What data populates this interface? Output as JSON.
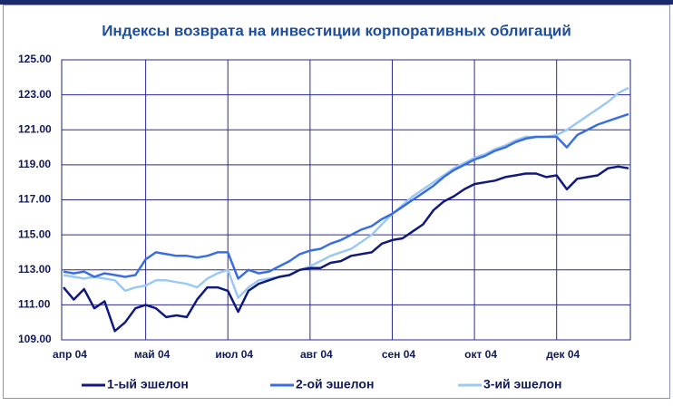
{
  "chart_data": {
    "type": "line",
    "title": "Индексы возврата на инвестиции корпоративных облигаций",
    "categories": [
      "апр 04",
      null,
      null,
      null,
      null,
      null,
      null,
      null,
      "май 04",
      null,
      null,
      null,
      null,
      null,
      null,
      null,
      "июл 04",
      null,
      null,
      null,
      null,
      null,
      null,
      null,
      "авг 04",
      null,
      null,
      null,
      null,
      null,
      null,
      null,
      "сен 04",
      null,
      null,
      null,
      null,
      null,
      null,
      null,
      "окт 04",
      null,
      null,
      null,
      null,
      null,
      null,
      null,
      "дек 04",
      null,
      null,
      null,
      null,
      null,
      null,
      null
    ],
    "series": [
      {
        "name": "1-ый эшелон",
        "color": "#101a7a",
        "values": [
          112.0,
          111.3,
          111.9,
          110.8,
          111.2,
          109.5,
          110.0,
          110.8,
          111.0,
          110.8,
          110.3,
          110.4,
          110.3,
          111.3,
          112.0,
          112.0,
          111.8,
          110.6,
          111.8,
          112.2,
          112.4,
          112.6,
          112.7,
          113.0,
          113.1,
          113.1,
          113.4,
          113.5,
          113.8,
          113.9,
          114.0,
          114.5,
          114.7,
          114.8,
          115.2,
          115.6,
          116.4,
          116.9,
          117.2,
          117.6,
          117.9,
          118.0,
          118.1,
          118.3,
          118.4,
          118.5,
          118.5,
          118.3,
          118.4,
          117.6,
          118.2,
          118.3,
          118.4,
          118.8,
          118.9,
          118.8
        ]
      },
      {
        "name": "2-ой эшелон",
        "color": "#3a6ee0",
        "values": [
          112.9,
          112.8,
          112.9,
          112.6,
          112.8,
          112.7,
          112.6,
          112.7,
          113.6,
          114.0,
          113.9,
          113.8,
          113.8,
          113.7,
          113.8,
          114.0,
          114.0,
          112.5,
          113.0,
          112.8,
          112.9,
          113.2,
          113.5,
          113.9,
          114.1,
          114.2,
          114.5,
          114.7,
          115.0,
          115.3,
          115.5,
          115.9,
          116.2,
          116.6,
          117.0,
          117.4,
          117.8,
          118.3,
          118.7,
          119.0,
          119.3,
          119.5,
          119.8,
          120.0,
          120.3,
          120.5,
          120.6,
          120.6,
          120.6,
          120.0,
          120.7,
          121.0,
          121.3,
          121.5,
          121.7,
          121.9
        ]
      },
      {
        "name": "3-ий эшелон",
        "color": "#9cc8f4",
        "values": [
          112.7,
          112.6,
          112.5,
          112.6,
          112.5,
          112.4,
          111.8,
          112.0,
          112.1,
          112.4,
          112.4,
          112.3,
          112.2,
          112.0,
          112.5,
          112.8,
          113.0,
          111.4,
          112.0,
          112.4,
          112.5,
          112.6,
          112.7,
          113.0,
          113.2,
          113.5,
          113.8,
          114.0,
          114.2,
          114.6,
          115.0,
          115.6,
          116.2,
          116.7,
          117.2,
          117.6,
          118.0,
          118.4,
          118.8,
          119.1,
          119.4,
          119.6,
          119.9,
          120.1,
          120.4,
          120.6,
          120.6,
          120.6,
          120.7,
          121.0,
          121.4,
          121.8,
          122.2,
          122.6,
          123.1,
          123.4
        ]
      }
    ],
    "ylim": [
      109,
      125
    ],
    "yticks": [
      {
        "value": 109,
        "label": "109.00"
      },
      {
        "value": 111,
        "label": "111.00"
      },
      {
        "value": 113,
        "label": "113.00"
      },
      {
        "value": 115,
        "label": "115.00"
      },
      {
        "value": 117,
        "label": "117.00"
      },
      {
        "value": 119,
        "label": "119.00"
      },
      {
        "value": 121,
        "label": "121.00"
      },
      {
        "value": 123,
        "label": "123.00"
      },
      {
        "value": 125,
        "label": "125.00"
      }
    ],
    "grid": true,
    "legend": "bottom"
  }
}
